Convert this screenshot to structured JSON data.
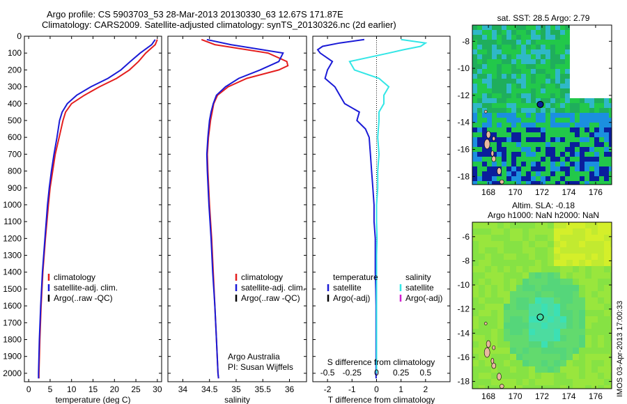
{
  "header": {
    "title_line1": "Argo profile: CS 5903703_53 28-Mar-2013 20130330_63 12.67S 171.87E",
    "title_line2": "Climatology: CARS2009. Satellite-adjusted climatology: synTS_20130326.nc (2d earlier)"
  },
  "side_stamp": "IMOS 03-Apr-2013 17:00:33",
  "colors": {
    "climatology": "#e41e1e",
    "satellite": "#1a1ad6",
    "argo": "#000000",
    "sal_satellite": "#33e6e6",
    "sal_argo": "#d01fd0"
  },
  "chart_data": [
    {
      "type": "line",
      "id": "temperature-profile",
      "xlabel": "temperature (deg C)",
      "ylabel": "",
      "xlim": [
        -1,
        31
      ],
      "ylim": [
        2050,
        0
      ],
      "xticks": [
        0,
        5,
        10,
        15,
        20,
        25,
        30
      ],
      "yticks": [
        0,
        100,
        200,
        300,
        400,
        500,
        600,
        700,
        800,
        900,
        1000,
        1100,
        1200,
        1300,
        1400,
        1500,
        1600,
        1700,
        1800,
        1900,
        2000
      ],
      "legend": [
        "climatology",
        "satellite-adj. clim.",
        "Argo(..raw -QC)"
      ],
      "series": [
        {
          "name": "climatology",
          "color": "#e41e1e",
          "depth": [
            20,
            50,
            100,
            150,
            200,
            250,
            300,
            350,
            400,
            450,
            500,
            600,
            700,
            800,
            900,
            1000,
            1200,
            1400,
            1600,
            1800,
            2000,
            2030
          ],
          "values": [
            30.0,
            29.5,
            27.3,
            25.6,
            23.5,
            20.5,
            16.5,
            13.0,
            10.0,
            8.6,
            8.0,
            7.1,
            6.2,
            5.6,
            5.0,
            4.6,
            3.9,
            3.3,
            2.9,
            2.6,
            2.4,
            2.4
          ]
        },
        {
          "name": "satellite-adj. clim.",
          "color": "#1a1ad6",
          "depth": [
            20,
            50,
            100,
            150,
            200,
            250,
            300,
            350,
            400,
            450,
            500,
            600,
            700,
            800,
            900,
            1000,
            1200,
            1400,
            1600,
            1800,
            2000,
            2030
          ],
          "values": [
            29.5,
            28.7,
            26.0,
            23.7,
            21.5,
            18.5,
            14.5,
            11.2,
            9.0,
            7.8,
            7.2,
            6.6,
            5.9,
            5.3,
            4.8,
            4.4,
            3.8,
            3.2,
            2.8,
            2.5,
            2.3,
            2.3
          ]
        }
      ]
    },
    {
      "type": "line",
      "id": "salinity-profile",
      "xlabel": "salinity",
      "ylabel": "",
      "xlim": [
        33.72,
        36.32
      ],
      "ylim": [
        2050,
        0
      ],
      "xticks": [
        34,
        34.5,
        35,
        35.5,
        36
      ],
      "legend": [
        "climatology",
        "satellite-adj. clim.",
        "Argo(..raw -QC)"
      ],
      "annotation": [
        "Argo Australia",
        "PI: Susan Wijffels"
      ],
      "series": [
        {
          "name": "climatology",
          "color": "#e41e1e",
          "depth": [
            20,
            50,
            100,
            150,
            175,
            200,
            250,
            300,
            350,
            400,
            450,
            500,
            600,
            700,
            800,
            1000,
            1200,
            1400,
            1600,
            1800,
            2000,
            2030
          ],
          "values": [
            34.35,
            34.6,
            35.6,
            35.95,
            35.97,
            35.8,
            35.2,
            34.85,
            34.65,
            34.58,
            34.55,
            34.52,
            34.48,
            34.46,
            34.47,
            34.5,
            34.54,
            34.57,
            34.6,
            34.63,
            34.66,
            34.67
          ]
        },
        {
          "name": "satellite-adj. clim.",
          "color": "#1a1ad6",
          "depth": [
            20,
            50,
            100,
            150,
            200,
            250,
            300,
            350,
            400,
            450,
            500,
            600,
            700,
            800,
            1000,
            1200,
            1400,
            1600,
            1800,
            2000,
            2030
          ],
          "values": [
            34.45,
            34.9,
            35.88,
            35.8,
            35.45,
            35.05,
            34.8,
            34.63,
            34.57,
            34.53,
            34.5,
            34.47,
            34.45,
            34.46,
            34.49,
            34.53,
            34.56,
            34.6,
            34.63,
            34.66,
            34.67
          ]
        }
      ]
    },
    {
      "type": "line",
      "id": "difference-profile",
      "xlabel": "T difference from climatology",
      "xlabel_top": "S difference from climatology",
      "xlim": [
        -2.6,
        3.0
      ],
      "ylim": [
        2050,
        0
      ],
      "xticks": [
        -2,
        -1,
        0,
        1,
        2
      ],
      "sticks_values": [
        -0.5,
        -0.25,
        0,
        0.25,
        0.5
      ],
      "sticks_pos": [
        -2,
        -1,
        0,
        1,
        2
      ],
      "legend": [
        "temperature",
        "satellite",
        "Argo(-adj)",
        "salinity",
        "satellite",
        "Argo(-adj)"
      ],
      "series": [
        {
          "name": "temperature satellite",
          "color": "#1a1ad6",
          "depth": [
            20,
            40,
            60,
            80,
            100,
            150,
            200,
            250,
            300,
            350,
            400,
            450,
            500,
            550,
            600,
            700,
            800,
            900,
            1000,
            1100,
            1200,
            1300,
            1400,
            1500,
            1600,
            1700,
            1800,
            1900,
            2000,
            2030
          ],
          "values": [
            -0.5,
            -1.5,
            -2.2,
            -2.4,
            -2.3,
            -1.8,
            -2.0,
            -2.1,
            -1.7,
            -1.5,
            -1.3,
            -0.7,
            -0.8,
            -0.45,
            -0.3,
            -0.25,
            -0.2,
            -0.15,
            -0.1,
            -0.1,
            -0.05,
            -0.05,
            -0.05,
            -0.03,
            -0.02,
            -0.02,
            -0.02,
            -0.02,
            -0.02,
            -0.02
          ]
        },
        {
          "name": "salinity satellite",
          "color": "#33e6e6",
          "depth": [
            20,
            40,
            60,
            80,
            100,
            150,
            200,
            250,
            300,
            350,
            400,
            450,
            500,
            600,
            700,
            800,
            900,
            1000,
            1100,
            1200,
            1300,
            1400,
            1600,
            1800,
            2000
          ],
          "values": [
            1.0,
            2.0,
            1.8,
            1.1,
            0.5,
            -1.1,
            -0.9,
            0.1,
            0.5,
            0.3,
            0.3,
            0.1,
            0.1,
            0.05,
            0.1,
            0.05,
            0.05,
            0.0,
            0.0,
            0.02,
            0.0,
            0.0,
            0.0,
            0.0,
            0.0
          ]
        }
      ]
    },
    {
      "type": "heatmap",
      "id": "sst-map",
      "title": "sat. SST: 28.5 Argo: 2.79",
      "xlim": [
        166.8,
        177.2
      ],
      "ylim": [
        -18.6,
        -6.8
      ],
      "xticks": [
        168,
        170,
        172,
        174,
        176
      ],
      "yticks": [
        -8,
        -10,
        -12,
        -14,
        -16,
        -18
      ],
      "marker": {
        "lon": 171.87,
        "lat": -12.67
      }
    },
    {
      "type": "heatmap",
      "id": "sla-map",
      "title": "Altim. SLA: -0.18",
      "subtitle": "Argo h1000: NaN h2000: NaN",
      "xlim": [
        166.8,
        177.2
      ],
      "ylim": [
        -18.6,
        -4.8
      ],
      "xticks": [
        168,
        170,
        172,
        174,
        176
      ],
      "yticks": [
        -6,
        -8,
        -10,
        -12,
        -14,
        -16,
        -18
      ],
      "marker": {
        "lon": 171.87,
        "lat": -12.67
      }
    }
  ]
}
